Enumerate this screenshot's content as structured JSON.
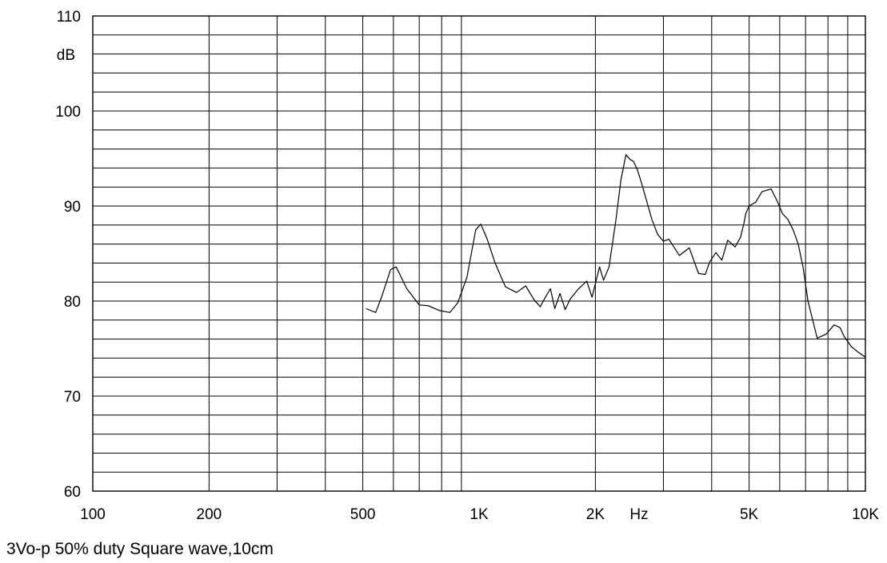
{
  "chart_data": {
    "type": "line",
    "title": "",
    "xlabel": "Hz",
    "ylabel": "dB",
    "x_scale": "log",
    "xlim": [
      100,
      10000
    ],
    "ylim": [
      60,
      110
    ],
    "grid": true,
    "x_ticks": [
      {
        "value": 100,
        "label": "100"
      },
      {
        "value": 200,
        "label": "200"
      },
      {
        "value": 500,
        "label": "500"
      },
      {
        "value": 1000,
        "label": "1K"
      },
      {
        "value": 2000,
        "label": "2K"
      },
      {
        "value": 5000,
        "label": "5K"
      },
      {
        "value": 10000,
        "label": "10K"
      }
    ],
    "y_ticks": [
      {
        "value": 60,
        "label": "60"
      },
      {
        "value": 70,
        "label": "70"
      },
      {
        "value": 80,
        "label": "80"
      },
      {
        "value": 90,
        "label": "90"
      },
      {
        "value": 100,
        "label": "100"
      },
      {
        "value": 110,
        "label": "110"
      }
    ],
    "series": [
      {
        "x": [
          510,
          540,
          560,
          590,
          610,
          650,
          700,
          740,
          790,
          840,
          880,
          930,
          980,
          1010,
          1050,
          1100,
          1170,
          1250,
          1320,
          1390,
          1440,
          1480,
          1530,
          1570,
          1620,
          1670,
          1720,
          1800,
          1900,
          1960,
          2050,
          2100,
          2170,
          2260,
          2330,
          2400,
          2460,
          2510,
          2570,
          2630,
          2700,
          2800,
          2900,
          3000,
          3100,
          3300,
          3500,
          3700,
          3850,
          3950,
          4100,
          4250,
          4400,
          4600,
          4750,
          4850,
          4900,
          5000,
          5200,
          5400,
          5700,
          5900,
          6100,
          6300,
          6500,
          6700,
          6900,
          7100,
          7500,
          7900,
          8300,
          8600,
          8800,
          9200,
          9600,
          10000
        ],
        "y": [
          79.2,
          78.8,
          80.5,
          83.3,
          83.6,
          81.3,
          79.6,
          79.5,
          79.0,
          78.8,
          79.8,
          82.5,
          87.5,
          88.1,
          86.5,
          84.0,
          81.5,
          80.9,
          81.6,
          80.1,
          79.4,
          80.3,
          81.3,
          79.2,
          80.8,
          79.1,
          80.2,
          81.2,
          82.1,
          80.4,
          83.6,
          82.2,
          83.6,
          88.5,
          92.8,
          95.4,
          94.9,
          94.7,
          93.8,
          92.5,
          90.9,
          88.6,
          87.0,
          86.3,
          86.5,
          84.8,
          85.6,
          82.9,
          82.8,
          84.1,
          85.1,
          84.3,
          86.4,
          85.7,
          86.7,
          88.2,
          89.2,
          90.0,
          90.4,
          91.5,
          91.8,
          90.6,
          89.2,
          88.6,
          87.5,
          86.0,
          83.5,
          80.0,
          76.1,
          76.5,
          77.5,
          77.2,
          76.3,
          75.2,
          74.6,
          74.1
        ]
      }
    ]
  },
  "caption": "3Vo-p 50% duty Square wave,10cm"
}
